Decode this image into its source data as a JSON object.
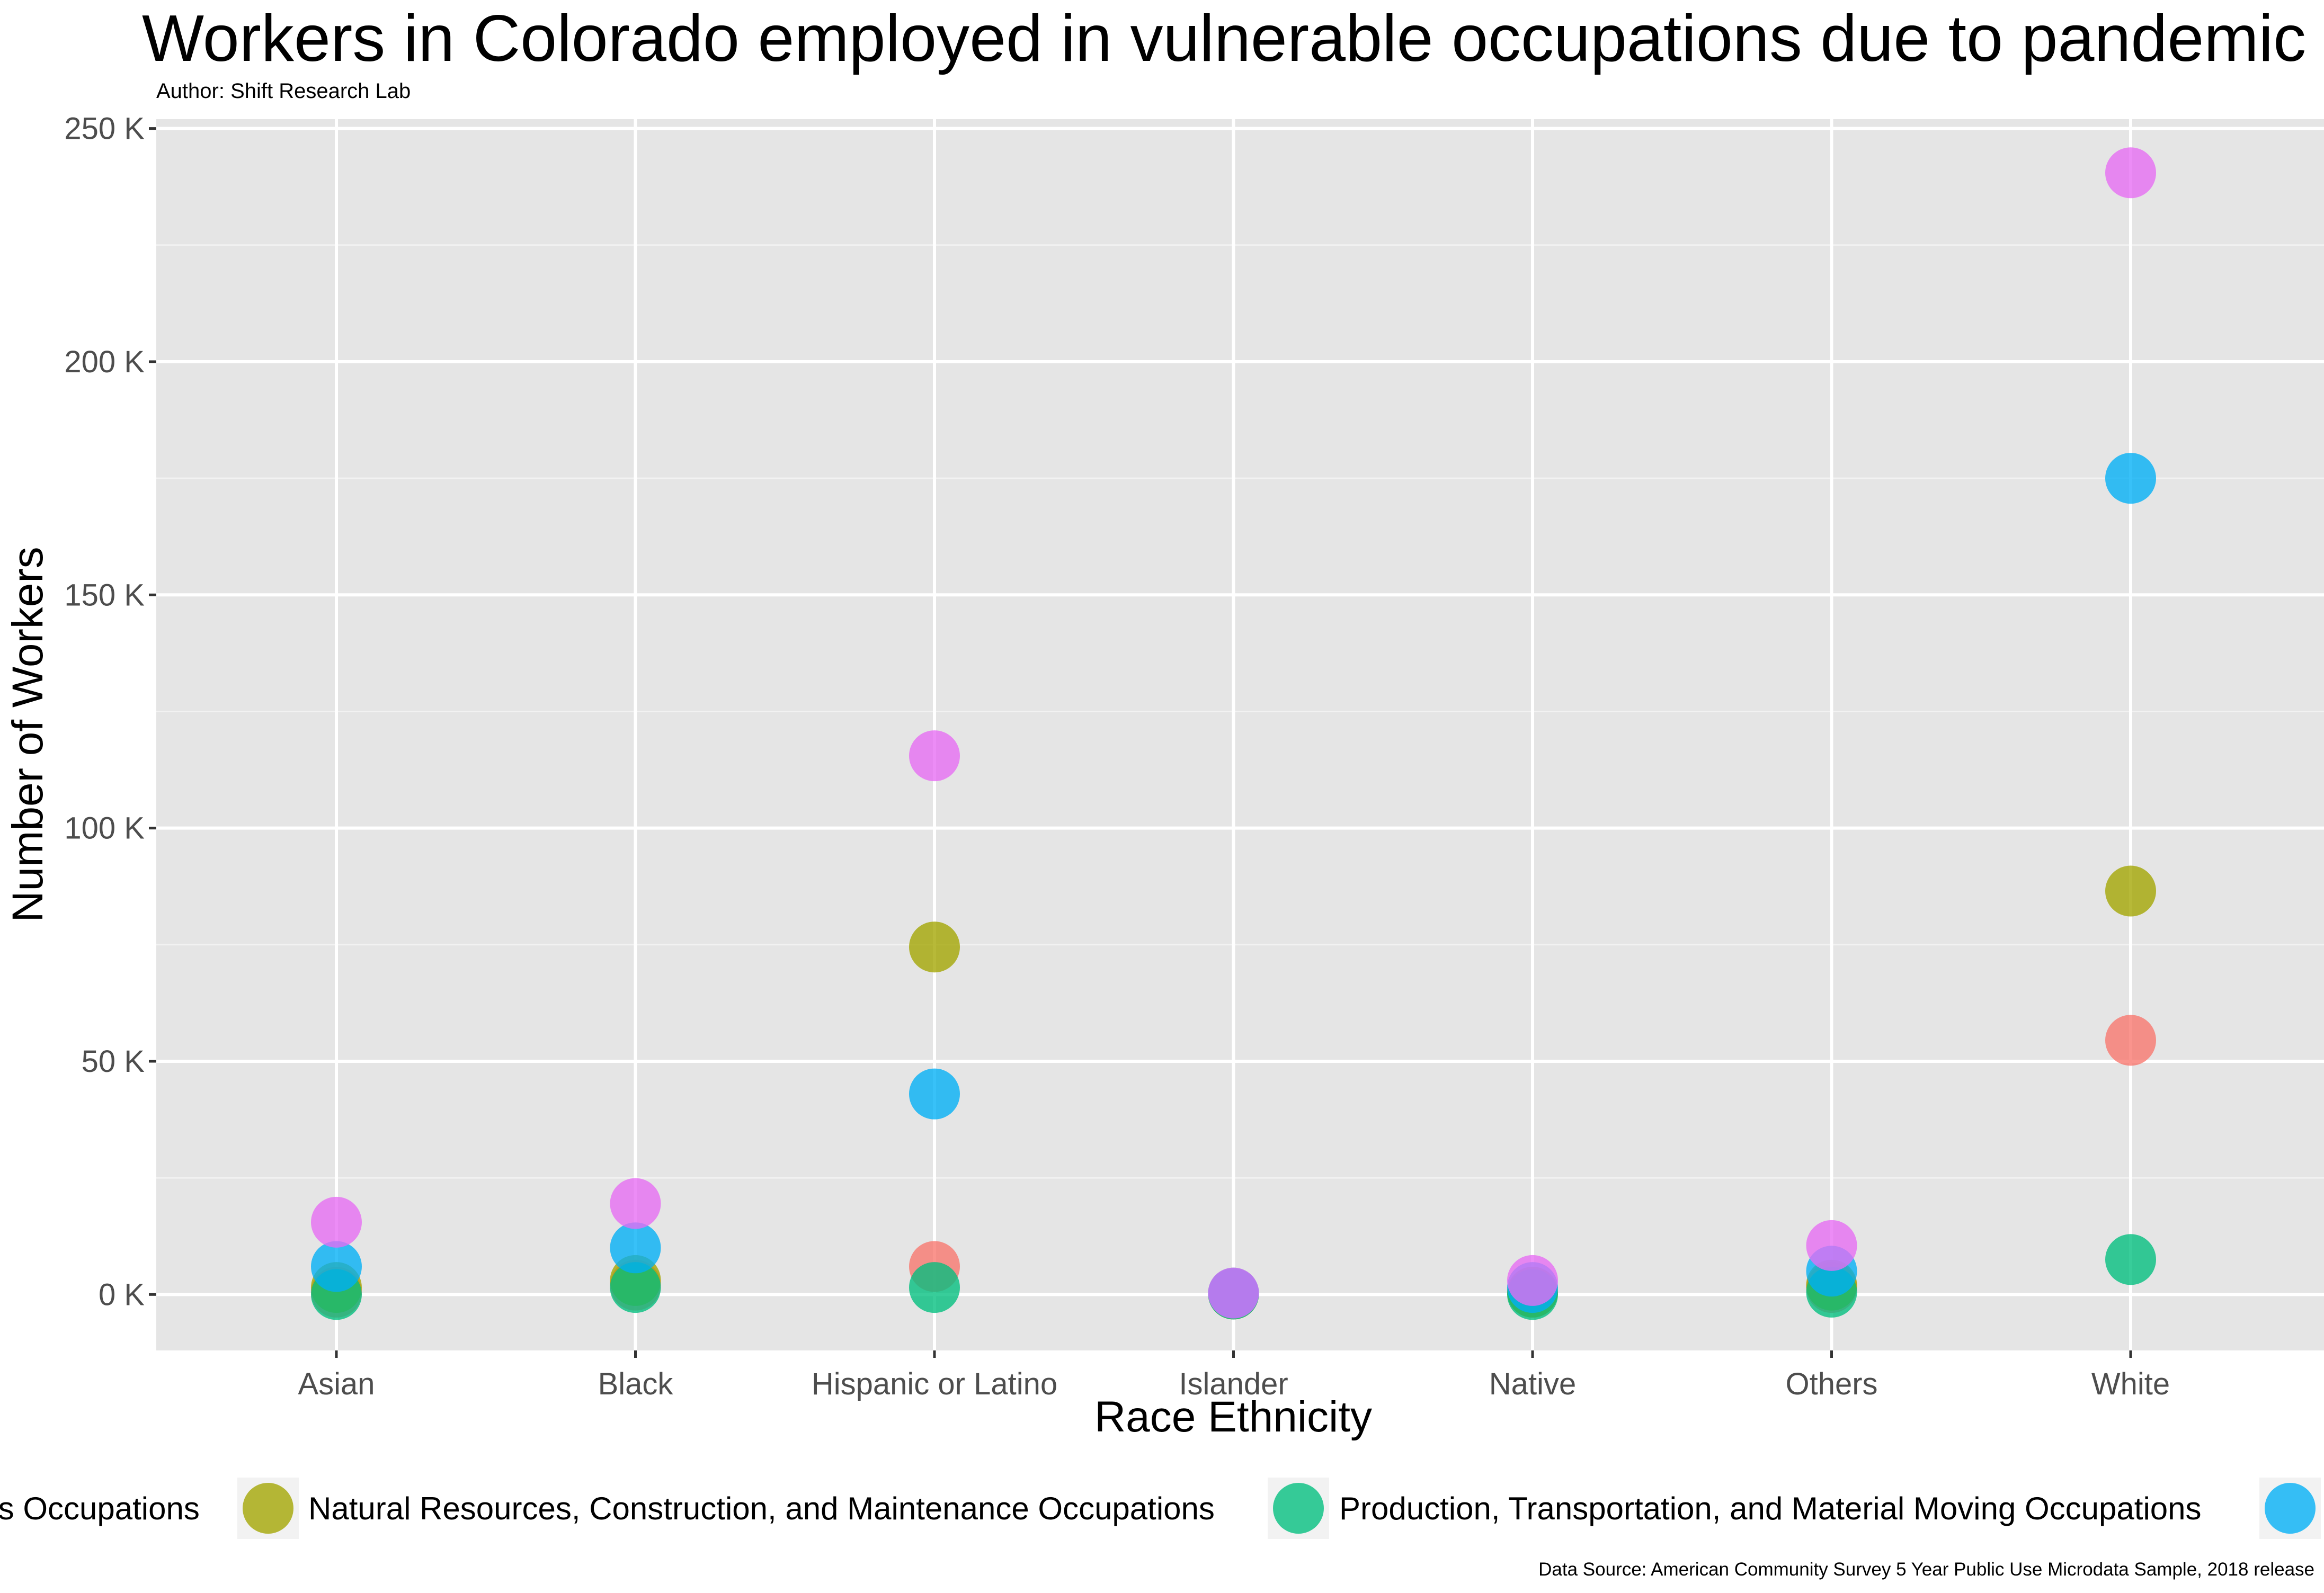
{
  "title": "Workers in Colorado employed in vulnerable occupations due to pandemic",
  "subtitle": "Author: Shift Research Lab",
  "caption": "Data Source: American Community Survey 5 Year Public Use Microdata Sample, 2018 release",
  "chart_data": {
    "type": "scatter",
    "xlabel": "Race Ethnicity",
    "ylabel": "Number of Workers",
    "categories": [
      "Asian",
      "Black",
      "Hispanic or Latino",
      "Islander",
      "Native",
      "Others",
      "White"
    ],
    "ylim": [
      -12000,
      252000
    ],
    "yticks": [
      0,
      50000,
      100000,
      150000,
      200000,
      250000
    ],
    "ytick_labels": [
      "0 K",
      "50 K",
      "100 K",
      "150 K",
      "200 K",
      "250 K"
    ],
    "grid": true,
    "legend_position": "bottom",
    "series": [
      {
        "name": "",
        "color": "#F8766D",
        "values": [
          500,
          2000,
          6000,
          300,
          500,
          1500,
          54500
        ]
      },
      {
        "name": "Natural Resources, Construction, and Maintenance Occupations",
        "color": "#A3A500",
        "values": [
          1500,
          3000,
          74500,
          100,
          500,
          2000,
          86500
        ]
      },
      {
        "name": "Production, Transportation, and Material Moving Occupations",
        "color": "#00BF7D",
        "values": [
          0,
          1500,
          1500,
          100,
          0,
          500,
          7500
        ]
      },
      {
        "name": "",
        "color": "#00B0F6",
        "values": [
          6000,
          10000,
          43000,
          300,
          1500,
          5000,
          175000
        ]
      },
      {
        "name": "",
        "color": "#E76BF3",
        "values": [
          15500,
          19500,
          115500,
          300,
          3000,
          10500,
          240500
        ]
      }
    ],
    "legend_items": [
      {
        "label": "ts Occupations",
        "color": ""
      },
      {
        "label": "Natural Resources, Construction, and Maintenance Occupations",
        "color": "#A3A500"
      },
      {
        "label": "Production, Transportation, and Material Moving Occupations",
        "color": "#00BF7D"
      },
      {
        "label": "",
        "color": "#00B0F6"
      }
    ]
  }
}
